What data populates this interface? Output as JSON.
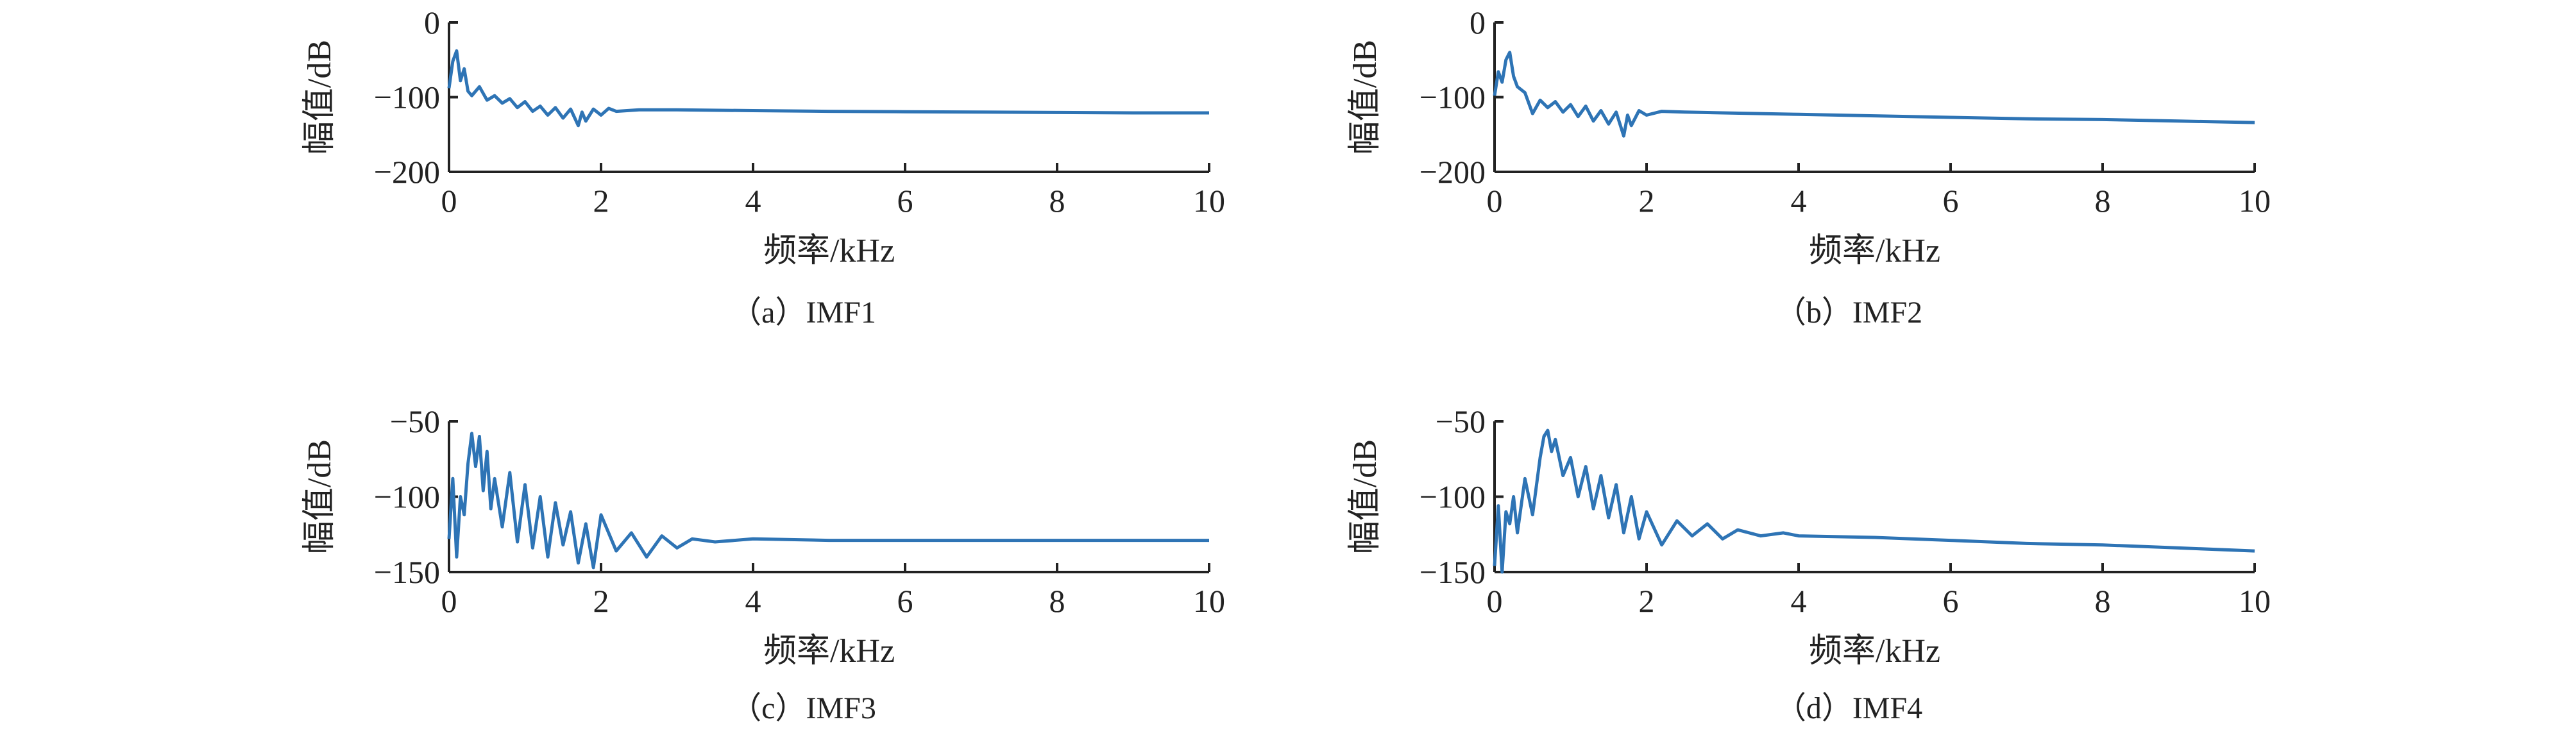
{
  "chart_data": [
    {
      "type": "line",
      "caption": "（a）IMF1",
      "xlabel": "频率/kHz",
      "ylabel": "幅值/dB",
      "xlim": [
        0,
        10
      ],
      "ylim": [
        -200,
        0
      ],
      "xticks": [
        "0",
        "2",
        "4",
        "6",
        "8",
        "10"
      ],
      "yticks": [
        "0",
        "−100",
        "−200"
      ],
      "color": "#2e74b5",
      "series": [
        {
          "x": [
            0,
            0.05,
            0.1,
            0.15,
            0.2,
            0.25,
            0.3,
            0.4,
            0.5,
            0.6,
            0.7,
            0.8,
            0.9,
            1.0,
            1.1,
            1.2,
            1.3,
            1.4,
            1.5,
            1.6,
            1.7,
            1.75,
            1.8,
            1.9,
            2.0,
            2.1,
            2.2,
            2.5,
            3,
            4,
            5,
            6,
            7,
            8,
            9,
            10
          ],
          "y": [
            -88,
            -52,
            -38,
            -78,
            -62,
            -92,
            -98,
            -86,
            -104,
            -98,
            -108,
            -102,
            -114,
            -106,
            -119,
            -112,
            -124,
            -114,
            -128,
            -116,
            -138,
            -120,
            -132,
            -116,
            -124,
            -115,
            -119,
            -117,
            -117,
            -118,
            -119,
            -119.5,
            -120,
            -120.5,
            -121,
            -121
          ]
        }
      ]
    },
    {
      "type": "line",
      "caption": "（b）IMF2",
      "xlabel": "频率/kHz",
      "ylabel": "幅值/dB",
      "xlim": [
        0,
        10
      ],
      "ylim": [
        -200,
        0
      ],
      "xticks": [
        "0",
        "2",
        "4",
        "6",
        "8",
        "10"
      ],
      "yticks": [
        "0",
        "−100",
        "−200"
      ],
      "color": "#2e74b5",
      "series": [
        {
          "x": [
            0,
            0.05,
            0.1,
            0.15,
            0.2,
            0.25,
            0.3,
            0.4,
            0.5,
            0.6,
            0.7,
            0.8,
            0.9,
            1.0,
            1.1,
            1.2,
            1.3,
            1.4,
            1.5,
            1.6,
            1.7,
            1.75,
            1.8,
            1.9,
            2.0,
            2.2,
            2.5,
            3,
            4,
            5,
            6,
            7,
            8,
            9,
            10
          ],
          "y": [
            -98,
            -66,
            -80,
            -50,
            -40,
            -72,
            -86,
            -94,
            -122,
            -104,
            -114,
            -106,
            -120,
            -110,
            -126,
            -112,
            -132,
            -118,
            -136,
            -120,
            -152,
            -124,
            -138,
            -118,
            -124,
            -119,
            -120,
            -121,
            -123,
            -125,
            -127,
            -129,
            -130,
            -132,
            -134
          ]
        }
      ]
    },
    {
      "type": "line",
      "caption": "（c）IMF3",
      "xlabel": "频率/kHz",
      "ylabel": "幅值/dB",
      "xlim": [
        0,
        10
      ],
      "ylim": [
        -150,
        -50
      ],
      "xticks": [
        "0",
        "2",
        "4",
        "6",
        "8",
        "10"
      ],
      "yticks": [
        "−50",
        "−100",
        "−150"
      ],
      "color": "#2e74b5",
      "series": [
        {
          "x": [
            0,
            0.05,
            0.1,
            0.15,
            0.2,
            0.25,
            0.3,
            0.35,
            0.4,
            0.45,
            0.5,
            0.55,
            0.6,
            0.7,
            0.8,
            0.9,
            1.0,
            1.1,
            1.2,
            1.3,
            1.4,
            1.5,
            1.6,
            1.7,
            1.8,
            1.9,
            2.0,
            2.2,
            2.4,
            2.6,
            2.8,
            3.0,
            3.2,
            3.5,
            4,
            5,
            6,
            7,
            8,
            9,
            10
          ],
          "y": [
            -128,
            -88,
            -140,
            -100,
            -112,
            -78,
            -58,
            -80,
            -60,
            -96,
            -70,
            -108,
            -88,
            -120,
            -84,
            -130,
            -92,
            -134,
            -100,
            -140,
            -104,
            -132,
            -110,
            -144,
            -118,
            -147,
            -112,
            -136,
            -124,
            -140,
            -126,
            -134,
            -128,
            -130,
            -128,
            -129,
            -129,
            -129,
            -129,
            -129,
            -129
          ]
        }
      ]
    },
    {
      "type": "line",
      "caption": "（d）IMF4",
      "xlabel": "频率/kHz",
      "ylabel": "幅值/dB",
      "xlim": [
        0,
        10
      ],
      "ylim": [
        -150,
        -50
      ],
      "xticks": [
        "0",
        "2",
        "4",
        "6",
        "8",
        "10"
      ],
      "yticks": [
        "−50",
        "−100",
        "−150"
      ],
      "color": "#2e74b5",
      "series": [
        {
          "x": [
            0,
            0.05,
            0.1,
            0.15,
            0.2,
            0.25,
            0.3,
            0.4,
            0.5,
            0.6,
            0.65,
            0.7,
            0.75,
            0.8,
            0.9,
            1.0,
            1.1,
            1.2,
            1.3,
            1.4,
            1.5,
            1.6,
            1.7,
            1.8,
            1.9,
            2.0,
            2.2,
            2.4,
            2.6,
            2.8,
            3.0,
            3.2,
            3.5,
            3.8,
            4,
            5,
            6,
            7,
            8,
            9,
            10
          ],
          "y": [
            -146,
            -106,
            -150,
            -110,
            -118,
            -100,
            -124,
            -88,
            -112,
            -74,
            -60,
            -56,
            -70,
            -62,
            -86,
            -74,
            -100,
            -80,
            -108,
            -86,
            -114,
            -92,
            -124,
            -100,
            -128,
            -110,
            -132,
            -116,
            -126,
            -118,
            -128,
            -122,
            -126,
            -124,
            -126,
            -127,
            -129,
            -131,
            -132,
            -134,
            -136
          ]
        }
      ]
    }
  ]
}
